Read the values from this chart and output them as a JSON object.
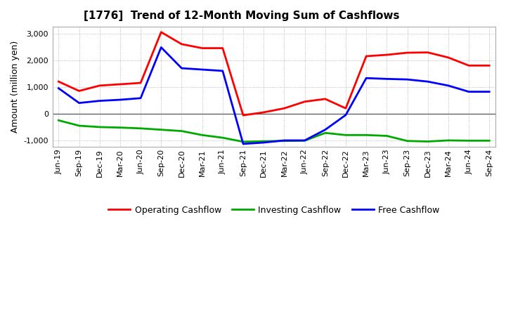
{
  "title": "[1776]  Trend of 12-Month Moving Sum of Cashflows",
  "ylabel": "Amount (million yen)",
  "labels": [
    "Jun-19",
    "Sep-19",
    "Dec-19",
    "Mar-20",
    "Jun-20",
    "Sep-20",
    "Dec-20",
    "Mar-21",
    "Jun-21",
    "Sep-21",
    "Dec-21",
    "Mar-22",
    "Jun-22",
    "Sep-22",
    "Dec-22",
    "Mar-23",
    "Jun-23",
    "Sep-23",
    "Dec-23",
    "Mar-24",
    "Jun-24",
    "Sep-24"
  ],
  "operating": [
    1200,
    850,
    1050,
    1100,
    1150,
    3050,
    2600,
    2450,
    2450,
    -60,
    50,
    200,
    450,
    550,
    200,
    2150,
    2200,
    2280,
    2290,
    2100,
    1800,
    1800
  ],
  "investing": [
    -250,
    -450,
    -500,
    -520,
    -550,
    -600,
    -650,
    -800,
    -900,
    -1050,
    -1030,
    -1020,
    -1010,
    -720,
    -800,
    -800,
    -830,
    -1020,
    -1040,
    -1000,
    -1010,
    -1010
  ],
  "free": [
    950,
    400,
    480,
    520,
    580,
    2480,
    1700,
    1650,
    1600,
    -1130,
    -1080,
    -1000,
    -1000,
    -600,
    -50,
    1330,
    1300,
    1280,
    1200,
    1050,
    820,
    820
  ],
  "operating_color": "#FF0000",
  "investing_color": "#00AA00",
  "free_color": "#0000FF",
  "ylim": [
    -1250,
    3250
  ],
  "yticks": [
    -1000,
    0,
    1000,
    2000,
    3000
  ],
  "bg_color": "#FFFFFF",
  "grid_color": "#AAAAAA",
  "linewidth": 2.0,
  "title_fontsize": 11,
  "axis_fontsize": 8,
  "ylabel_fontsize": 9
}
